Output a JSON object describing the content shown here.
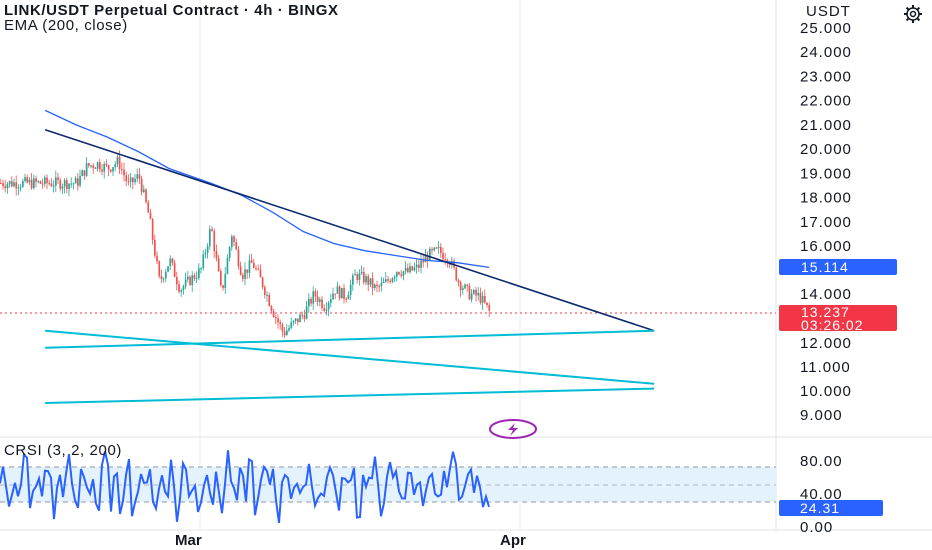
{
  "header": {
    "title": "LINK/USDT Perpetual Contract · 4h · BINGX",
    "indicator": "EMA (200, close)",
    "unit": "USDT"
  },
  "price_axis": {
    "ticks": [
      "25.000",
      "24.000",
      "23.000",
      "22.000",
      "21.000",
      "20.000",
      "19.000",
      "18.000",
      "17.000",
      "16.000",
      "14.000",
      "12.000",
      "11.000",
      "10.000",
      "9.000"
    ],
    "ema_badge": "15.114",
    "price_badge": "13.237",
    "countdown": "03:26:02"
  },
  "crsi": {
    "label": "CRSI (3, 2, 200)",
    "ticks": [
      "80.00",
      "40.00",
      "0.00"
    ],
    "value_badge": "24.31",
    "upper_band": 70,
    "lower_band": 30
  },
  "time_axis": {
    "labels": [
      "Mar",
      "Apr"
    ]
  },
  "colors": {
    "up": "#26a69a",
    "down": "#ef5350",
    "ema": "#2962ff",
    "trend": "#0d2a6e",
    "channel": "#00bcd4",
    "crsi": "#2962ff",
    "band_fill": "#e3f2fd",
    "price_badge": "#f23645",
    "ema_badge": "#2962ff"
  },
  "icons": {
    "settings": "gear-icon",
    "flash": "lightning-icon"
  },
  "chart_data": {
    "type": "candlestick",
    "title": "LINK/USDT Perpetual Contract · 4h · BINGX",
    "ylabel": "USDT",
    "price_path": [
      [
        "Feb 18",
        18.6
      ],
      [
        "Feb 19",
        19.3
      ],
      [
        "Feb 20",
        19.4
      ],
      [
        "Feb 21",
        19.2
      ],
      [
        "Feb 22",
        19.5
      ],
      [
        "Feb 23",
        18.5
      ],
      [
        "Feb 24",
        18.9
      ],
      [
        "Feb 25",
        17.2
      ],
      [
        "Feb 26",
        14.5
      ],
      [
        "Feb 27",
        15.4
      ],
      [
        "Feb 28",
        14.2
      ],
      [
        "Mar 1",
        15.0
      ],
      [
        "Mar 2",
        16.8
      ],
      [
        "Mar 3",
        14.0
      ],
      [
        "Mar 4",
        16.5
      ],
      [
        "Mar 5",
        14.8
      ],
      [
        "Mar 6",
        15.3
      ],
      [
        "Mar 7",
        14.4
      ],
      [
        "Mar 8",
        13.3
      ],
      [
        "Mar 9",
        12.4
      ],
      [
        "Mar 10",
        12.8
      ],
      [
        "Mar 11",
        13.2
      ],
      [
        "Mar 12",
        14.0
      ],
      [
        "Mar 13",
        13.5
      ],
      [
        "Mar 14",
        14.2
      ],
      [
        "Mar 15",
        13.9
      ],
      [
        "Mar 16",
        14.8
      ],
      [
        "Mar 17",
        14.6
      ],
      [
        "Mar 18",
        14.2
      ],
      [
        "Mar 19",
        14.5
      ],
      [
        "Mar 20",
        15.0
      ],
      [
        "Mar 21",
        14.9
      ],
      [
        "Mar 22",
        15.1
      ],
      [
        "Mar 23",
        15.6
      ],
      [
        "Mar 24",
        15.8
      ],
      [
        "Mar 25",
        15.5
      ],
      [
        "Mar 26",
        14.5
      ],
      [
        "Mar 27",
        14.0
      ],
      [
        "Mar 28",
        13.9
      ],
      [
        "Mar 29",
        13.24
      ]
    ],
    "ema_200": [
      [
        "Feb 15",
        21.6
      ],
      [
        "Feb 18",
        21.0
      ],
      [
        "Feb 21",
        20.5
      ],
      [
        "Feb 24",
        19.9
      ],
      [
        "Feb 27",
        19.2
      ],
      [
        "Mar 2",
        18.6
      ],
      [
        "Mar 5",
        18.1
      ],
      [
        "Mar 8",
        17.4
      ],
      [
        "Mar 11",
        16.6
      ],
      [
        "Mar 14",
        16.1
      ],
      [
        "Mar 17",
        15.8
      ],
      [
        "Mar 20",
        15.6
      ],
      [
        "Mar 23",
        15.4
      ],
      [
        "Mar 26",
        15.3
      ],
      [
        "Mar 29",
        15.11
      ]
    ],
    "trend_lines": [
      {
        "name": "descending-resistance",
        "from": [
          "Feb 15",
          20.8
        ],
        "to": [
          "Apr 14",
          12.5
        ]
      }
    ],
    "channel_lines": [
      {
        "name": "channel-top",
        "from": [
          "Feb 15",
          12.5
        ],
        "to": [
          "Apr 14",
          10.3
        ]
      },
      {
        "name": "support-rising",
        "from": [
          "Feb 15",
          11.8
        ],
        "to": [
          "Apr 14",
          12.5
        ]
      },
      {
        "name": "channel-bottom",
        "from": [
          "Feb 15",
          9.5
        ],
        "to": [
          "Apr 14",
          10.1
        ]
      }
    ],
    "last_price": 13.237,
    "ema_value": 15.114,
    "crsi_last": 24.31,
    "crsi_bands": [
      70,
      30
    ],
    "crsi_ylim": [
      0,
      100
    ]
  }
}
